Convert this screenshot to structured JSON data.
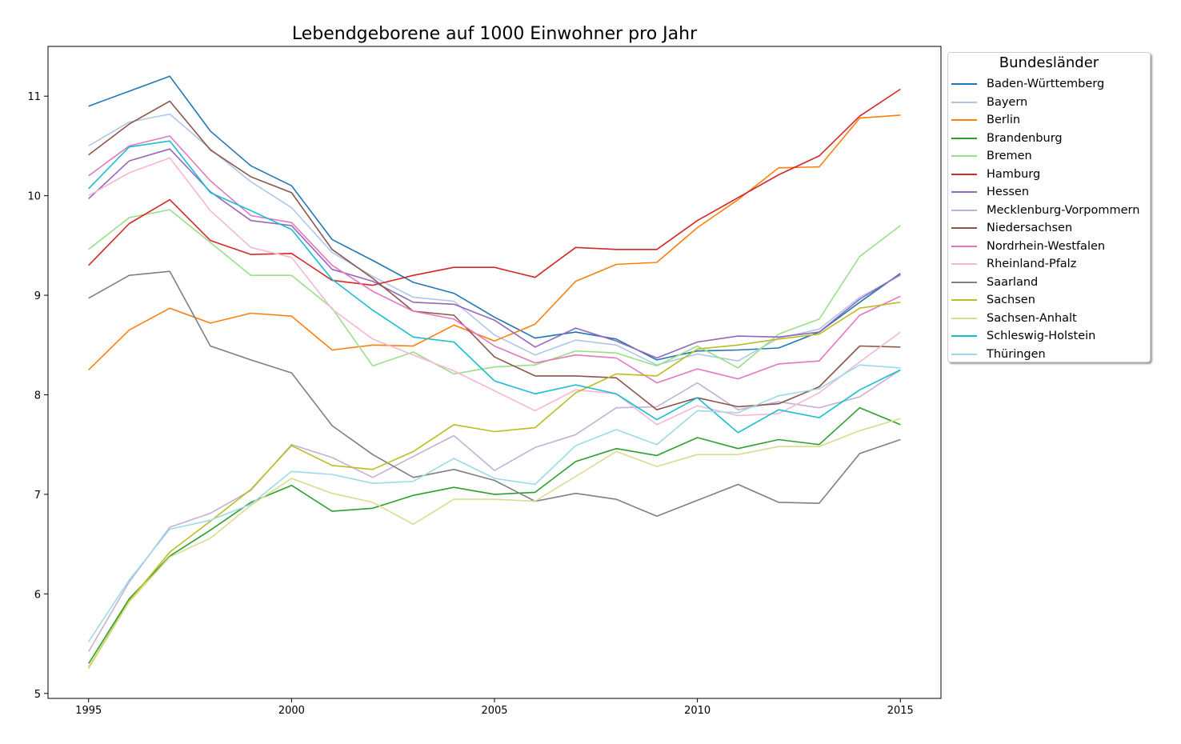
{
  "chart_data": {
    "type": "line",
    "title": "Lebendgeborene auf 1000 Einwohner pro Jahr",
    "xlabel": "",
    "ylabel": "",
    "xlim": [
      1994,
      2016
    ],
    "ylim": [
      4.95,
      11.5
    ],
    "x_ticks": [
      1995,
      2000,
      2005,
      2010,
      2015
    ],
    "y_ticks": [
      5,
      6,
      7,
      8,
      9,
      10,
      11
    ],
    "grid": false,
    "legend": {
      "title": "Bundesländer",
      "placement": "outside-right"
    },
    "x": [
      1995,
      1996,
      1997,
      1998,
      1999,
      2000,
      2001,
      2002,
      2003,
      2004,
      2005,
      2006,
      2007,
      2008,
      2009,
      2010,
      2011,
      2012,
      2013,
      2014,
      2015
    ],
    "series": [
      {
        "name": "Baden-Württemberg",
        "color": "#1f77b4",
        "values": [
          10.9,
          11.05,
          11.2,
          10.65,
          10.3,
          10.1,
          9.56,
          9.35,
          9.13,
          9.02,
          8.78,
          8.57,
          8.63,
          8.56,
          8.35,
          8.44,
          8.45,
          8.47,
          8.63,
          8.93,
          9.22
        ]
      },
      {
        "name": "Bayern",
        "color": "#aec7e8",
        "values": [
          10.5,
          10.74,
          10.82,
          10.47,
          10.14,
          9.88,
          9.43,
          9.19,
          8.98,
          8.94,
          8.6,
          8.4,
          8.55,
          8.5,
          8.3,
          8.41,
          8.34,
          8.57,
          8.66,
          8.98,
          9.2
        ]
      },
      {
        "name": "Berlin",
        "color": "#ff7f0e",
        "values": [
          8.25,
          8.65,
          8.87,
          8.72,
          8.82,
          8.79,
          8.45,
          8.5,
          8.49,
          8.7,
          8.54,
          8.71,
          9.14,
          9.31,
          9.33,
          9.68,
          9.96,
          10.28,
          10.29,
          10.78,
          10.81
        ]
      },
      {
        "name": "Brandenburg",
        "color": "#2ca02c",
        "values": [
          5.3,
          5.95,
          6.38,
          6.64,
          6.92,
          7.09,
          6.83,
          6.86,
          6.99,
          7.07,
          7.0,
          7.02,
          7.33,
          7.46,
          7.39,
          7.57,
          7.46,
          7.55,
          7.5,
          7.87,
          7.7
        ]
      },
      {
        "name": "Bremen",
        "color": "#98df8a",
        "values": [
          9.46,
          9.78,
          9.86,
          9.53,
          9.2,
          9.2,
          8.87,
          8.29,
          8.43,
          8.21,
          8.28,
          8.3,
          8.44,
          8.42,
          8.29,
          8.49,
          8.27,
          8.61,
          8.76,
          9.39,
          9.7
        ]
      },
      {
        "name": "Hamburg",
        "color": "#d62728",
        "values": [
          9.3,
          9.72,
          9.96,
          9.55,
          9.41,
          9.42,
          9.15,
          9.1,
          9.2,
          9.28,
          9.28,
          9.18,
          9.48,
          9.46,
          9.46,
          9.75,
          9.98,
          10.21,
          10.4,
          10.8,
          11.07
        ]
      },
      {
        "name": "Hessen",
        "color": "#9467bd",
        "values": [
          9.97,
          10.35,
          10.47,
          10.04,
          9.75,
          9.7,
          9.26,
          9.14,
          8.93,
          8.91,
          8.75,
          8.48,
          8.67,
          8.54,
          8.37,
          8.53,
          8.59,
          8.58,
          8.63,
          8.96,
          9.21
        ]
      },
      {
        "name": "Mecklenburg-Vorpommern",
        "color": "#c5b0d5",
        "values": [
          5.42,
          6.12,
          6.67,
          6.81,
          7.04,
          7.5,
          7.37,
          7.17,
          7.38,
          7.59,
          7.24,
          7.47,
          7.6,
          7.87,
          7.88,
          8.12,
          7.85,
          7.93,
          7.87,
          7.98,
          8.25
        ]
      },
      {
        "name": "Niedersachsen",
        "color": "#8c564b",
        "values": [
          10.41,
          10.72,
          10.95,
          10.46,
          10.19,
          10.03,
          9.46,
          9.17,
          8.84,
          8.8,
          8.38,
          8.19,
          8.19,
          8.17,
          7.85,
          7.97,
          7.88,
          7.91,
          8.08,
          8.49,
          8.48
        ]
      },
      {
        "name": "Nordrhein-Westfalen",
        "color": "#e377c2",
        "values": [
          10.2,
          10.5,
          10.6,
          10.15,
          9.8,
          9.73,
          9.3,
          9.04,
          8.84,
          8.76,
          8.49,
          8.32,
          8.4,
          8.37,
          8.12,
          8.26,
          8.16,
          8.31,
          8.34,
          8.8,
          8.99
        ]
      },
      {
        "name": "Rheinland-Pfalz",
        "color": "#f7b6d2",
        "values": [
          10.0,
          10.23,
          10.38,
          9.85,
          9.48,
          9.38,
          8.86,
          8.56,
          8.4,
          8.24,
          8.04,
          7.84,
          8.05,
          8.01,
          7.7,
          7.89,
          7.79,
          7.81,
          8.02,
          8.33,
          8.63
        ]
      },
      {
        "name": "Saarland",
        "color": "#7f7f7f",
        "values": [
          8.97,
          9.2,
          9.24,
          8.49,
          8.35,
          8.22,
          7.69,
          7.4,
          7.17,
          7.25,
          7.14,
          6.93,
          7.01,
          6.95,
          6.78,
          6.94,
          7.1,
          6.92,
          6.91,
          7.41,
          7.55
        ]
      },
      {
        "name": "Sachsen",
        "color": "#bcbd22",
        "values": [
          5.26,
          5.93,
          6.42,
          6.73,
          7.05,
          7.49,
          7.29,
          7.25,
          7.43,
          7.7,
          7.63,
          7.67,
          8.02,
          8.21,
          8.19,
          8.46,
          8.5,
          8.56,
          8.61,
          8.87,
          8.93
        ]
      },
      {
        "name": "Sachsen-Anhalt",
        "color": "#dbdb8d",
        "values": [
          5.25,
          5.92,
          6.37,
          6.56,
          6.89,
          7.16,
          7.01,
          6.92,
          6.7,
          6.95,
          6.95,
          6.93,
          7.18,
          7.43,
          7.28,
          7.4,
          7.4,
          7.48,
          7.48,
          7.64,
          7.76
        ]
      },
      {
        "name": "Schleswig-Holstein",
        "color": "#17becf",
        "values": [
          10.07,
          10.49,
          10.55,
          10.03,
          9.85,
          9.66,
          9.16,
          8.85,
          8.58,
          8.53,
          8.14,
          8.01,
          8.1,
          8.01,
          7.75,
          7.97,
          7.62,
          7.85,
          7.77,
          8.05,
          8.25
        ]
      },
      {
        "name": "Thüringen",
        "color": "#9edae5",
        "values": [
          5.52,
          6.14,
          6.65,
          6.74,
          6.9,
          7.23,
          7.2,
          7.11,
          7.13,
          7.36,
          7.16,
          7.1,
          7.49,
          7.65,
          7.5,
          7.84,
          7.82,
          7.99,
          8.06,
          8.3,
          8.27
        ]
      }
    ]
  }
}
